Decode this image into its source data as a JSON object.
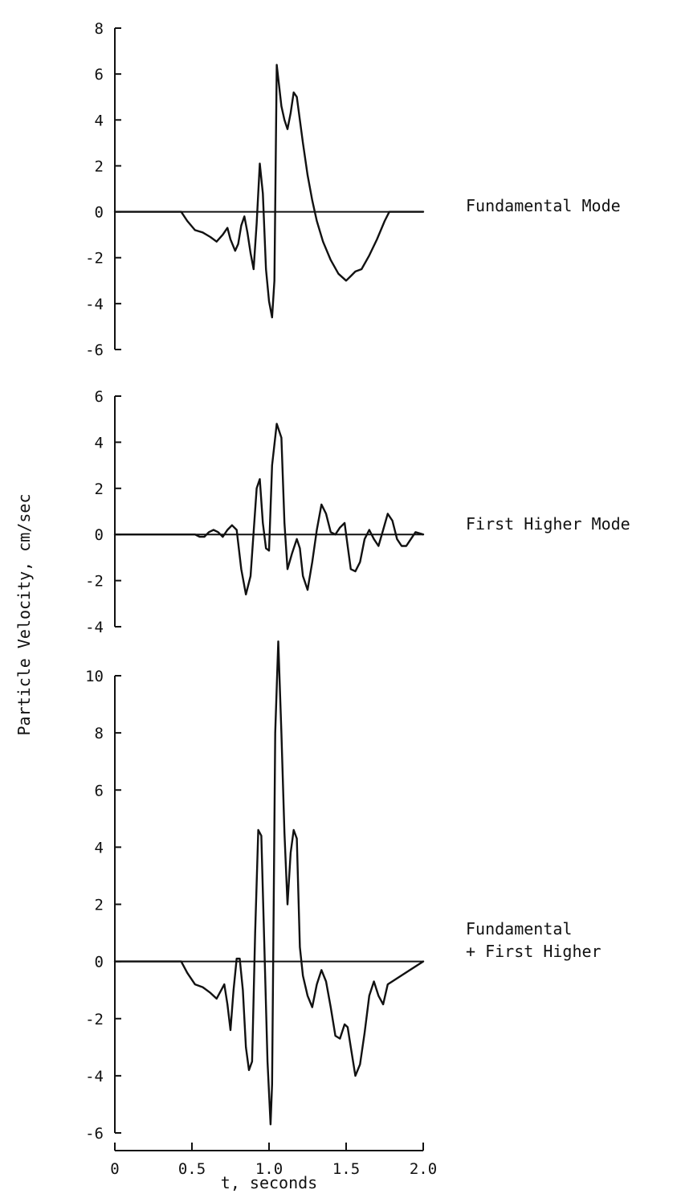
{
  "figure": {
    "ylabel": "Particle Velocity, cm/sec",
    "xlabel": "t, seconds"
  },
  "chart_data": [
    {
      "type": "line",
      "panel_label_lines": [
        "Fundamental Mode"
      ],
      "ylim": [
        -6,
        8
      ],
      "yticks": [
        "8",
        "6",
        "4",
        "2",
        "0",
        "-2",
        "-4",
        "-6"
      ],
      "xlim": [
        0,
        2.0
      ],
      "series": [
        {
          "x": [
            0,
            0.43,
            0.47,
            0.52,
            0.57,
            0.62,
            0.66,
            0.7,
            0.73,
            0.75,
            0.78,
            0.8,
            0.82,
            0.84,
            0.86,
            0.88,
            0.9,
            0.92,
            0.94,
            0.96,
            0.98,
            1.0,
            1.02,
            1.035,
            1.05,
            1.065,
            1.08,
            1.1,
            1.12,
            1.14,
            1.16,
            1.18,
            1.2,
            1.22,
            1.25,
            1.28,
            1.31,
            1.35,
            1.4,
            1.45,
            1.5,
            1.53,
            1.56,
            1.6,
            1.65,
            1.7,
            1.75,
            1.78,
            2.0
          ],
          "y": [
            0,
            0,
            -0.4,
            -0.8,
            -0.9,
            -1.1,
            -1.3,
            -1.0,
            -0.7,
            -1.2,
            -1.7,
            -1.4,
            -0.6,
            -0.2,
            -0.9,
            -1.8,
            -2.5,
            -0.5,
            2.1,
            0.8,
            -2.5,
            -3.9,
            -4.6,
            -3.0,
            6.4,
            5.5,
            4.6,
            4.0,
            3.6,
            4.3,
            5.2,
            5.0,
            4.0,
            3.0,
            1.6,
            0.5,
            -0.4,
            -1.3,
            -2.1,
            -2.7,
            -3.0,
            -2.8,
            -2.6,
            -2.5,
            -1.9,
            -1.2,
            -0.4,
            0,
            0
          ]
        }
      ]
    },
    {
      "type": "line",
      "panel_label_lines": [
        "First Higher Mode"
      ],
      "ylim": [
        -4,
        6
      ],
      "yticks": [
        "6",
        "4",
        "2",
        "0",
        "-2",
        "-4"
      ],
      "xlim": [
        0,
        2.0
      ],
      "series": [
        {
          "x": [
            0,
            0.52,
            0.55,
            0.58,
            0.61,
            0.64,
            0.67,
            0.7,
            0.73,
            0.76,
            0.79,
            0.82,
            0.85,
            0.88,
            0.9,
            0.92,
            0.94,
            0.96,
            0.98,
            1.0,
            1.02,
            1.05,
            1.08,
            1.1,
            1.12,
            1.15,
            1.18,
            1.2,
            1.22,
            1.25,
            1.28,
            1.31,
            1.34,
            1.37,
            1.4,
            1.43,
            1.46,
            1.49,
            1.51,
            1.53,
            1.56,
            1.59,
            1.62,
            1.65,
            1.68,
            1.71,
            1.74,
            1.77,
            1.8,
            1.83,
            1.86,
            1.89,
            1.92,
            1.95,
            2.0
          ],
          "y": [
            0,
            0,
            -0.1,
            -0.1,
            0.1,
            0.2,
            0.1,
            -0.1,
            0.2,
            0.4,
            0.2,
            -1.5,
            -2.6,
            -1.8,
            0.1,
            2.0,
            2.4,
            0.5,
            -0.6,
            -0.7,
            3.0,
            4.8,
            4.2,
            0.5,
            -1.5,
            -0.8,
            -0.2,
            -0.6,
            -1.8,
            -2.4,
            -1.2,
            0.2,
            1.3,
            0.9,
            0.1,
            0.0,
            0.3,
            0.5,
            -0.5,
            -1.5,
            -1.6,
            -1.2,
            -0.2,
            0.2,
            -0.2,
            -0.5,
            0.2,
            0.9,
            0.6,
            -0.2,
            -0.5,
            -0.5,
            -0.2,
            0.1,
            0
          ]
        }
      ]
    },
    {
      "type": "line",
      "panel_label_lines": [
        "Fundamental",
        "+ First Higher"
      ],
      "ylim": [
        -6,
        11
      ],
      "yticks": [
        "10",
        "8",
        "6",
        "4",
        "2",
        "0",
        "-2",
        "-4",
        "-6"
      ],
      "xlim": [
        0,
        2.0
      ],
      "series": [
        {
          "x": [
            0,
            0.43,
            0.47,
            0.52,
            0.57,
            0.62,
            0.66,
            0.69,
            0.71,
            0.73,
            0.75,
            0.77,
            0.79,
            0.81,
            0.83,
            0.85,
            0.87,
            0.89,
            0.91,
            0.93,
            0.95,
            0.97,
            0.99,
            1.01,
            1.02,
            1.04,
            1.06,
            1.08,
            1.1,
            1.12,
            1.14,
            1.16,
            1.18,
            1.2,
            1.22,
            1.25,
            1.28,
            1.31,
            1.34,
            1.37,
            1.4,
            1.43,
            1.46,
            1.49,
            1.51,
            1.53,
            1.56,
            1.59,
            1.62,
            1.65,
            1.68,
            1.71,
            1.74,
            1.77,
            2.0
          ],
          "y": [
            0,
            0,
            -0.4,
            -0.8,
            -0.9,
            -1.1,
            -1.3,
            -1.0,
            -0.8,
            -1.5,
            -2.4,
            -1.0,
            0.1,
            0.1,
            -1.0,
            -3.0,
            -3.8,
            -3.5,
            1.0,
            4.6,
            4.4,
            0.5,
            -3.5,
            -5.7,
            -4.3,
            8.0,
            11.2,
            8.0,
            4.5,
            2.0,
            3.8,
            4.6,
            4.3,
            0.5,
            -0.5,
            -1.2,
            -1.6,
            -0.8,
            -0.3,
            -0.7,
            -1.6,
            -2.6,
            -2.7,
            -2.2,
            -2.3,
            -3.0,
            -4.0,
            -3.6,
            -2.5,
            -1.2,
            -0.7,
            -1.2,
            -1.5,
            -0.8,
            0
          ]
        }
      ]
    }
  ],
  "x_axis": {
    "ticks": [
      "0",
      "0.5",
      "1.0",
      "1.5",
      "2.0"
    ]
  }
}
